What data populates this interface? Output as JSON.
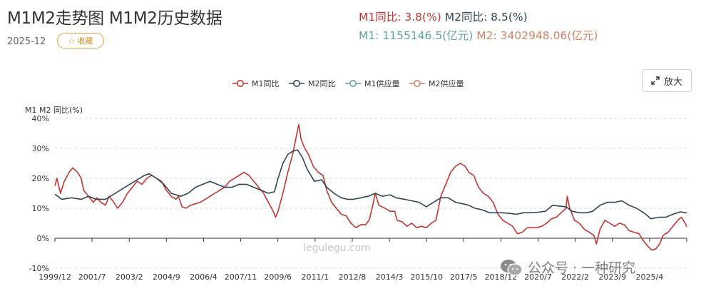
{
  "header": {
    "title": "M1M2走势图 M1M2历史数据",
    "date": "2025-12",
    "favorite_label": "收藏",
    "zoom_label": "放大"
  },
  "stats": {
    "m1_yoy_label": "M1同比: 3.8(%)",
    "m2_yoy_label": "M2同比: 8.5(%)",
    "m1_supply_label": "M1: 1155146.5(亿元)",
    "m2_supply_label": "M2: 3402948.06(亿元)"
  },
  "watermark": "legulegu.com",
  "wechat_caption": "公众号 · 一种研究",
  "colors": {
    "m1": "#c23531",
    "m2": "#2f4554",
    "m1_supply": "#61a0a8",
    "m2_supply": "#d48265"
  },
  "chart_data": {
    "type": "line",
    "title": "M1M2走势图",
    "ylabel": "M1  M2  同比(%)",
    "ylim": [
      -10,
      40
    ],
    "yticks": [
      "40%",
      "30%",
      "20%",
      "10%",
      "0%",
      "-10%"
    ],
    "x_tick_labels": [
      "1999/12",
      "2001/7",
      "2003/2",
      "2004/9",
      "2006/4",
      "2007/11",
      "2009/6",
      "2011/1",
      "2012/8",
      "2014/3",
      "2015/10",
      "2017/5",
      "2018/12",
      "2020/7",
      "2022/2",
      "2023/9",
      "2025/4"
    ],
    "x_range": [
      1999.917,
      2025.917
    ],
    "legend": [
      "M1同比",
      "M2同比",
      "M1供应量",
      "M2供应量"
    ],
    "legend_position": "top-center",
    "grid": true,
    "series": [
      {
        "name": "M1同比",
        "points": [
          [
            1999.92,
            17.5
          ],
          [
            2000.0,
            20
          ],
          [
            2000.15,
            15
          ],
          [
            2000.3,
            19
          ],
          [
            2000.5,
            22
          ],
          [
            2000.65,
            23.5
          ],
          [
            2000.85,
            22
          ],
          [
            2001.0,
            20
          ],
          [
            2001.1,
            16
          ],
          [
            2001.3,
            14
          ],
          [
            2001.5,
            12
          ],
          [
            2001.65,
            13.5
          ],
          [
            2001.8,
            12
          ],
          [
            2002.0,
            11
          ],
          [
            2002.15,
            14
          ],
          [
            2002.3,
            12.5
          ],
          [
            2002.5,
            10
          ],
          [
            2002.7,
            12
          ],
          [
            2002.9,
            15
          ],
          [
            2003.1,
            17
          ],
          [
            2003.3,
            19
          ],
          [
            2003.5,
            18
          ],
          [
            2003.7,
            20
          ],
          [
            2003.9,
            21
          ],
          [
            2004.1,
            20
          ],
          [
            2004.3,
            19
          ],
          [
            2004.5,
            16
          ],
          [
            2004.7,
            14
          ],
          [
            2004.9,
            13
          ],
          [
            2005.0,
            14
          ],
          [
            2005.15,
            10.5
          ],
          [
            2005.3,
            10
          ],
          [
            2005.5,
            11
          ],
          [
            2005.7,
            11.5
          ],
          [
            2005.9,
            12
          ],
          [
            2006.1,
            13
          ],
          [
            2006.3,
            14
          ],
          [
            2006.5,
            15
          ],
          [
            2006.7,
            16
          ],
          [
            2006.9,
            17
          ],
          [
            2007.1,
            19
          ],
          [
            2007.3,
            20
          ],
          [
            2007.5,
            21
          ],
          [
            2007.7,
            22
          ],
          [
            2007.9,
            21
          ],
          [
            2008.1,
            19
          ],
          [
            2008.3,
            17
          ],
          [
            2008.5,
            15
          ],
          [
            2008.7,
            12
          ],
          [
            2008.9,
            9
          ],
          [
            2009.0,
            7
          ],
          [
            2009.1,
            9
          ],
          [
            2009.3,
            15
          ],
          [
            2009.5,
            22
          ],
          [
            2009.7,
            28
          ],
          [
            2009.85,
            34
          ],
          [
            2009.95,
            38
          ],
          [
            2010.05,
            33
          ],
          [
            2010.2,
            30
          ],
          [
            2010.35,
            28
          ],
          [
            2010.55,
            24
          ],
          [
            2010.75,
            22
          ],
          [
            2010.95,
            21
          ],
          [
            2011.1,
            16
          ],
          [
            2011.3,
            12
          ],
          [
            2011.5,
            10
          ],
          [
            2011.7,
            8
          ],
          [
            2011.9,
            7.5
          ],
          [
            2012.1,
            5
          ],
          [
            2012.3,
            3.5
          ],
          [
            2012.5,
            4.5
          ],
          [
            2012.7,
            4.5
          ],
          [
            2012.85,
            6
          ],
          [
            2013.0,
            11
          ],
          [
            2013.1,
            15
          ],
          [
            2013.25,
            11
          ],
          [
            2013.5,
            10
          ],
          [
            2013.7,
            9
          ],
          [
            2013.9,
            9
          ],
          [
            2014.0,
            6
          ],
          [
            2014.2,
            5.5
          ],
          [
            2014.4,
            4
          ],
          [
            2014.6,
            5
          ],
          [
            2014.8,
            3.5
          ],
          [
            2015.0,
            4
          ],
          [
            2015.2,
            3.5
          ],
          [
            2015.4,
            5
          ],
          [
            2015.6,
            6
          ],
          [
            2015.8,
            14
          ],
          [
            2016.0,
            18
          ],
          [
            2016.2,
            22
          ],
          [
            2016.4,
            24
          ],
          [
            2016.6,
            25
          ],
          [
            2016.8,
            24
          ],
          [
            2016.95,
            22
          ],
          [
            2017.15,
            21
          ],
          [
            2017.35,
            17
          ],
          [
            2017.55,
            15
          ],
          [
            2017.75,
            14
          ],
          [
            2017.95,
            12
          ],
          [
            2018.15,
            8
          ],
          [
            2018.35,
            6
          ],
          [
            2018.55,
            5
          ],
          [
            2018.75,
            4
          ],
          [
            2018.95,
            1.5
          ],
          [
            2019.15,
            2
          ],
          [
            2019.35,
            3.5
          ],
          [
            2019.55,
            3.5
          ],
          [
            2019.75,
            3.5
          ],
          [
            2019.95,
            4
          ],
          [
            2020.15,
            5
          ],
          [
            2020.35,
            6.5
          ],
          [
            2020.55,
            7
          ],
          [
            2020.75,
            8.5
          ],
          [
            2020.95,
            10
          ],
          [
            2021.0,
            14
          ],
          [
            2021.1,
            10
          ],
          [
            2021.3,
            6
          ],
          [
            2021.5,
            5
          ],
          [
            2021.7,
            3
          ],
          [
            2021.9,
            2
          ],
          [
            2022.1,
            1
          ],
          [
            2022.2,
            -1.9
          ],
          [
            2022.35,
            3
          ],
          [
            2022.55,
            6
          ],
          [
            2022.75,
            5
          ],
          [
            2022.95,
            4
          ],
          [
            2023.15,
            5
          ],
          [
            2023.35,
            4.5
          ],
          [
            2023.55,
            2.5
          ],
          [
            2023.75,
            2
          ],
          [
            2023.95,
            1.5
          ],
          [
            2024.15,
            -1
          ],
          [
            2024.35,
            -3
          ],
          [
            2024.5,
            -4
          ],
          [
            2024.65,
            -3.5
          ],
          [
            2024.8,
            -2
          ],
          [
            2024.95,
            1
          ],
          [
            2025.15,
            2
          ],
          [
            2025.35,
            4
          ],
          [
            2025.55,
            6
          ],
          [
            2025.7,
            7
          ],
          [
            2025.85,
            5
          ],
          [
            2025.917,
            3.8
          ]
        ]
      },
      {
        "name": "M2同比",
        "points": [
          [
            1999.92,
            14.7
          ],
          [
            2000.2,
            13
          ],
          [
            2000.6,
            13.5
          ],
          [
            2001.0,
            13
          ],
          [
            2001.3,
            14
          ],
          [
            2001.6,
            13
          ],
          [
            2002.0,
            13
          ],
          [
            2002.4,
            15
          ],
          [
            2002.8,
            17
          ],
          [
            2003.2,
            19
          ],
          [
            2003.6,
            21
          ],
          [
            2003.8,
            21.5
          ],
          [
            2004.1,
            20
          ],
          [
            2004.4,
            18
          ],
          [
            2004.7,
            15
          ],
          [
            2004.9,
            14.5
          ],
          [
            2005.1,
            14
          ],
          [
            2005.4,
            15
          ],
          [
            2005.7,
            17
          ],
          [
            2006.0,
            18
          ],
          [
            2006.3,
            19
          ],
          [
            2006.6,
            18
          ],
          [
            2006.9,
            17
          ],
          [
            2007.2,
            17
          ],
          [
            2007.5,
            18
          ],
          [
            2007.8,
            18
          ],
          [
            2008.1,
            17
          ],
          [
            2008.4,
            16
          ],
          [
            2008.7,
            15
          ],
          [
            2008.95,
            15.5
          ],
          [
            2009.1,
            20
          ],
          [
            2009.3,
            25
          ],
          [
            2009.5,
            28
          ],
          [
            2009.7,
            29
          ],
          [
            2009.9,
            29.5
          ],
          [
            2010.1,
            27
          ],
          [
            2010.3,
            23
          ],
          [
            2010.6,
            19
          ],
          [
            2010.9,
            19.5
          ],
          [
            2011.1,
            17
          ],
          [
            2011.4,
            15
          ],
          [
            2011.7,
            13.5
          ],
          [
            2011.95,
            13
          ],
          [
            2012.2,
            13
          ],
          [
            2012.5,
            13.5
          ],
          [
            2012.8,
            14
          ],
          [
            2013.1,
            15
          ],
          [
            2013.4,
            14
          ],
          [
            2013.7,
            14.5
          ],
          [
            2013.95,
            13.5
          ],
          [
            2014.3,
            13
          ],
          [
            2014.6,
            12.5
          ],
          [
            2014.9,
            12
          ],
          [
            2015.2,
            10.5
          ],
          [
            2015.5,
            12
          ],
          [
            2015.8,
            13.5
          ],
          [
            2016.1,
            13.5
          ],
          [
            2016.4,
            12
          ],
          [
            2016.7,
            11.5
          ],
          [
            2016.95,
            11
          ],
          [
            2017.2,
            10
          ],
          [
            2017.5,
            9.5
          ],
          [
            2017.8,
            8.5
          ],
          [
            2018.0,
            8.5
          ],
          [
            2018.3,
            8.5
          ],
          [
            2018.6,
            8.3
          ],
          [
            2018.9,
            8
          ],
          [
            2019.2,
            8.5
          ],
          [
            2019.5,
            8.5
          ],
          [
            2019.8,
            8.7
          ],
          [
            2020.1,
            9
          ],
          [
            2020.4,
            11
          ],
          [
            2020.7,
            10.7
          ],
          [
            2020.95,
            10.5
          ],
          [
            2021.2,
            9
          ],
          [
            2021.5,
            8.5
          ],
          [
            2021.8,
            8.5
          ],
          [
            2022.05,
            9
          ],
          [
            2022.35,
            11
          ],
          [
            2022.65,
            12
          ],
          [
            2022.95,
            12
          ],
          [
            2023.25,
            12.5
          ],
          [
            2023.55,
            11
          ],
          [
            2023.85,
            10
          ],
          [
            2024.15,
            8.5
          ],
          [
            2024.45,
            6.5
          ],
          [
            2024.75,
            7
          ],
          [
            2025.05,
            7
          ],
          [
            2025.35,
            8
          ],
          [
            2025.65,
            8.8
          ],
          [
            2025.917,
            8.5
          ]
        ]
      }
    ]
  }
}
